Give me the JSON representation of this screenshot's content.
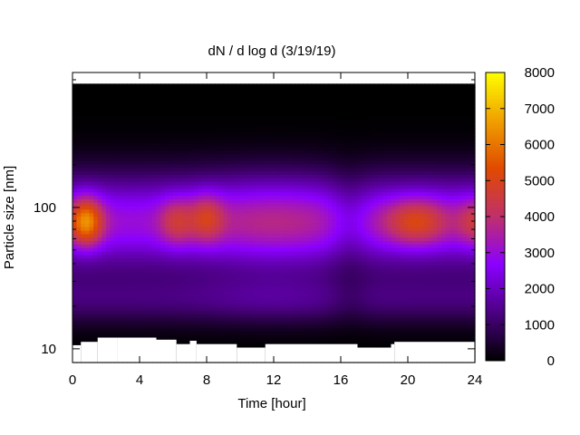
{
  "chart_data": {
    "type": "heatmap",
    "title": "dN / d log d (3/19/19)",
    "xlabel": "Time [hour]",
    "ylabel": "Particle size [nm]",
    "xlim": [
      0,
      24
    ],
    "ylim": [
      8,
      900
    ],
    "yscale": "log",
    "xticks": [
      0,
      4,
      8,
      12,
      16,
      20,
      24
    ],
    "xtick_labels": [
      "0",
      "4",
      "8",
      "12",
      "16",
      "20",
      "24"
    ],
    "yticks": [
      10,
      100
    ],
    "ytick_labels": [
      "10",
      "100"
    ],
    "colorbar": {
      "range": [
        0,
        8000
      ],
      "ticks": [
        0,
        1000,
        2000,
        3000,
        4000,
        5000,
        6000,
        7000,
        8000
      ],
      "tick_labels": [
        "0",
        "1000",
        "2000",
        "3000",
        "4000",
        "5000",
        "6000",
        "7000",
        "8000"
      ],
      "colormap": "gnuplot black-purple-red-yellow",
      "colors": [
        "#000000",
        "#4b0082",
        "#8b00ff",
        "#c0306a",
        "#e04a00",
        "#f0a000",
        "#ffff00"
      ]
    },
    "grid": false,
    "size_max_nm": 750,
    "lower_size_edge_nm": [
      {
        "x": [
          0.0,
          0.5
        ],
        "y": 10.6
      },
      {
        "x": [
          0.5,
          1.5
        ],
        "y": 11.2
      },
      {
        "x": [
          1.5,
          2.7
        ],
        "y": 12.0
      },
      {
        "x": [
          2.7,
          5.0
        ],
        "y": 12.0
      },
      {
        "x": [
          5.0,
          6.2
        ],
        "y": 11.6
      },
      {
        "x": [
          6.2,
          7.0
        ],
        "y": 10.8
      },
      {
        "x": [
          7.0,
          7.4
        ],
        "y": 11.4
      },
      {
        "x": [
          7.4,
          9.8
        ],
        "y": 10.8
      },
      {
        "x": [
          9.8,
          11.5
        ],
        "y": 10.2
      },
      {
        "x": [
          11.5,
          17.0
        ],
        "y": 10.8
      },
      {
        "x": [
          17.0,
          19.0
        ],
        "y": 10.2
      },
      {
        "x": [
          19.0,
          19.2
        ],
        "y": 10.8
      },
      {
        "x": [
          19.2,
          24.0
        ],
        "y": 11.2
      }
    ],
    "peaks": [
      {
        "time_h": 0.8,
        "size_nm": 80,
        "value": 7000
      },
      {
        "time_h": 6.2,
        "size_nm": 80,
        "value": 5000
      },
      {
        "time_h": 8.0,
        "size_nm": 85,
        "value": 5200
      },
      {
        "time_h": 20.5,
        "size_nm": 80,
        "value": 5600
      },
      {
        "time_h": 24.0,
        "size_nm": 80,
        "value": 5000
      }
    ]
  }
}
